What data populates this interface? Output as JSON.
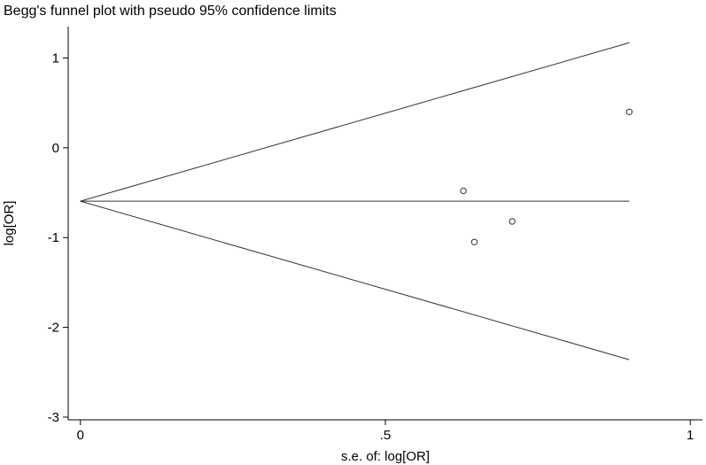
{
  "chart_data": {
    "type": "scatter",
    "title": "Begg's funnel plot with pseudo 95% confidence limits",
    "xlabel": "s.e. of: log[OR]",
    "ylabel": "log[OR]",
    "xlim": [
      -0.02,
      1.02
    ],
    "ylim": [
      -3.03,
      1.35
    ],
    "grid": false,
    "x_ticks": [
      {
        "value": 0,
        "label": "0"
      },
      {
        "value": 0.5,
        "label": ".5"
      },
      {
        "value": 1,
        "label": "1"
      }
    ],
    "y_ticks": [
      {
        "value": 1,
        "label": "1"
      },
      {
        "value": 0,
        "label": "0"
      },
      {
        "value": -1,
        "label": "-1"
      },
      {
        "value": -2,
        "label": "-2"
      },
      {
        "value": -3,
        "label": "-3"
      }
    ],
    "pooled_estimate": -0.595,
    "se_max": 0.9,
    "upper_limit": [
      {
        "x": 0,
        "y": -0.595
      },
      {
        "x": 0.9,
        "y": 1.17
      }
    ],
    "lower_limit": [
      {
        "x": 0,
        "y": -0.595
      },
      {
        "x": 0.9,
        "y": -2.36
      }
    ],
    "studies": [
      {
        "x": 0.628,
        "y": -0.48
      },
      {
        "x": 0.646,
        "y": -1.05
      },
      {
        "x": 0.708,
        "y": -0.82
      },
      {
        "x": 0.9,
        "y": 0.4
      }
    ]
  }
}
